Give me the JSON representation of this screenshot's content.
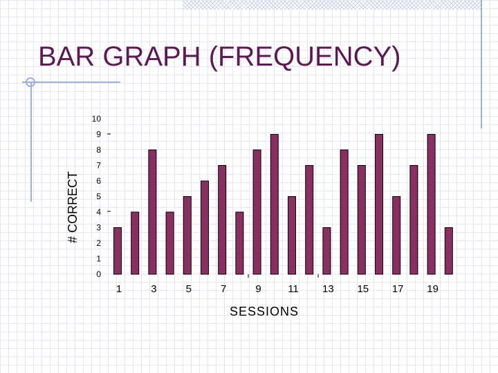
{
  "slide": {
    "title": "BAR GRAPH (FREQUENCY)"
  },
  "chart_data": {
    "type": "bar",
    "title": "",
    "xlabel": "SESSIONS",
    "ylabel": "# CORRECT",
    "categories": [
      1,
      2,
      3,
      4,
      5,
      6,
      7,
      8,
      9,
      10,
      11,
      12,
      13,
      14,
      15,
      16,
      17,
      18,
      19,
      20
    ],
    "x_tick_labels": [
      "1",
      "3",
      "5",
      "7",
      "9",
      "11",
      "13",
      "15",
      "17",
      "19"
    ],
    "y_tick_labels": [
      "0",
      "1",
      "2",
      "3",
      "4",
      "5",
      "6",
      "7",
      "8",
      "9",
      "10"
    ],
    "ylim": [
      0,
      10
    ],
    "grid": false,
    "bar_color": "#8b2f63",
    "series": [
      {
        "values": [
          3,
          4,
          8,
          4,
          5,
          6,
          7,
          4,
          8,
          9,
          5,
          7,
          3,
          8,
          7,
          9,
          5,
          7,
          9,
          3
        ]
      }
    ]
  }
}
